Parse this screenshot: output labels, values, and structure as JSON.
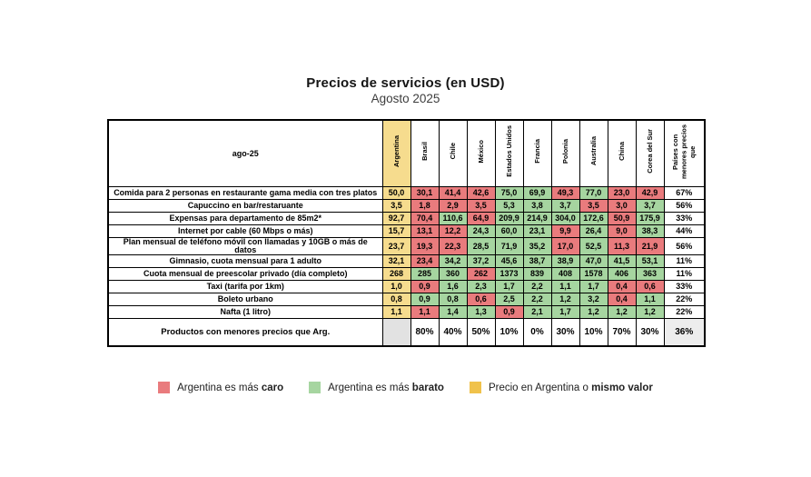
{
  "title": "Precios de servicios (en USD)",
  "subtitle": "Agosto 2025",
  "colors": {
    "red": "#e97b7d",
    "green": "#a6d5a0",
    "yellow_cell": "#f6dc8e",
    "yellow_legend": "#f0c24b",
    "gray_blank": "#e2e2e2",
    "gray_total": "#ededed"
  },
  "legend": [
    {
      "color_key": "red",
      "text": "Argentina es más ",
      "bold": "caro"
    },
    {
      "color_key": "green",
      "text": "Argentina es más ",
      "bold": "barato"
    },
    {
      "color_key": "yellow_legend",
      "text": "Precio en Argentina o ",
      "bold": "mismo valor"
    }
  ],
  "chart_data": {
    "type": "table",
    "title": "Precios de servicios (en USD)",
    "subtitle": "Agosto 2025",
    "corner_label": "ago-25",
    "columns": [
      "Argentina",
      "Brasil",
      "Chile",
      "México",
      "Estados Unidos",
      "Francia",
      "Polonia",
      "Australia",
      "China",
      "Corea del Sur"
    ],
    "last_column_header": "Países con menores precios que",
    "color_semantics": {
      "red": "Argentina es más caro",
      "green": "Argentina es más barato",
      "yellow": "Precio en Argentina o mismo valor"
    },
    "rows": [
      {
        "label": "Comida para 2 personas en restaurante gama media con tres platos",
        "argentina": "50,0",
        "values": [
          "30,1",
          "41,4",
          "42,6",
          "75,0",
          "69,9",
          "49,3",
          "77,0",
          "23,0",
          "42,9"
        ],
        "colors": [
          "red",
          "red",
          "red",
          "green",
          "green",
          "red",
          "green",
          "red",
          "red"
        ],
        "pct": "67%"
      },
      {
        "label": "Capuccino en bar/restaruante",
        "argentina": "3,5",
        "values": [
          "1,8",
          "2,9",
          "3,5",
          "5,3",
          "3,8",
          "3,7",
          "3,5",
          "3,0",
          "3,7"
        ],
        "colors": [
          "red",
          "red",
          "red",
          "green",
          "green",
          "green",
          "red",
          "red",
          "green"
        ],
        "pct": "56%"
      },
      {
        "label": "Expensas para departamento de 85m2*",
        "argentina": "92,7",
        "values": [
          "70,4",
          "110,6",
          "64,9",
          "209,9",
          "214,9",
          "304,0",
          "172,6",
          "50,9",
          "175,9"
        ],
        "colors": [
          "red",
          "green",
          "red",
          "green",
          "green",
          "green",
          "green",
          "red",
          "green"
        ],
        "pct": "33%"
      },
      {
        "label": "Internet por cable (60 Mbps o más)",
        "argentina": "15,7",
        "values": [
          "13,1",
          "12,2",
          "24,3",
          "60,0",
          "23,1",
          "9,9",
          "26,4",
          "9,0",
          "38,3"
        ],
        "colors": [
          "red",
          "red",
          "green",
          "green",
          "green",
          "red",
          "green",
          "red",
          "green"
        ],
        "pct": "44%"
      },
      {
        "label": "Plan mensual de teléfono móvil con llamadas y 10GB o más de datos",
        "argentina": "23,7",
        "values": [
          "19,3",
          "22,3",
          "28,5",
          "71,9",
          "35,2",
          "17,0",
          "52,5",
          "11,3",
          "21,9"
        ],
        "colors": [
          "red",
          "red",
          "green",
          "green",
          "green",
          "red",
          "green",
          "red",
          "red"
        ],
        "pct": "56%"
      },
      {
        "label": "Gimnasio, cuota mensual para 1 adulto",
        "argentina": "32,1",
        "values": [
          "23,4",
          "34,2",
          "37,2",
          "45,6",
          "38,7",
          "38,9",
          "47,0",
          "41,5",
          "53,1"
        ],
        "colors": [
          "red",
          "green",
          "green",
          "green",
          "green",
          "green",
          "green",
          "green",
          "green"
        ],
        "pct": "11%"
      },
      {
        "label": "Cuota mensual de preescolar privado (día completo)",
        "argentina": "268",
        "values": [
          "285",
          "360",
          "262",
          "1373",
          "839",
          "408",
          "1578",
          "406",
          "363"
        ],
        "colors": [
          "green",
          "green",
          "red",
          "green",
          "green",
          "green",
          "green",
          "green",
          "green"
        ],
        "pct": "11%"
      },
      {
        "label": "Taxi (tarifa por 1km)",
        "argentina": "1,0",
        "values": [
          "0,9",
          "1,6",
          "2,3",
          "1,7",
          "2,2",
          "1,1",
          "1,7",
          "0,4",
          "0,6"
        ],
        "colors": [
          "red",
          "green",
          "green",
          "green",
          "green",
          "green",
          "green",
          "red",
          "red"
        ],
        "pct": "33%"
      },
      {
        "label": "Boleto urbano",
        "argentina": "0,8",
        "values": [
          "0,9",
          "0,8",
          "0,6",
          "2,5",
          "2,2",
          "1,2",
          "3,2",
          "0,4",
          "1,1"
        ],
        "colors": [
          "green",
          "green",
          "red",
          "green",
          "green",
          "green",
          "green",
          "red",
          "green"
        ],
        "pct": "22%"
      },
      {
        "label": "Nafta (1 litro)",
        "argentina": "1,1",
        "values": [
          "1,1",
          "1,4",
          "1,3",
          "0,9",
          "2,1",
          "1,7",
          "1,2",
          "1,2",
          "1,2"
        ],
        "colors": [
          "red",
          "green",
          "green",
          "red",
          "green",
          "green",
          "green",
          "green",
          "green"
        ],
        "pct": "22%"
      }
    ],
    "footer": {
      "label": "Productos con menores precios que Arg.",
      "argentina": "",
      "values": [
        "80%",
        "40%",
        "50%",
        "10%",
        "0%",
        "30%",
        "10%",
        "70%",
        "30%"
      ],
      "total": "36%"
    }
  }
}
